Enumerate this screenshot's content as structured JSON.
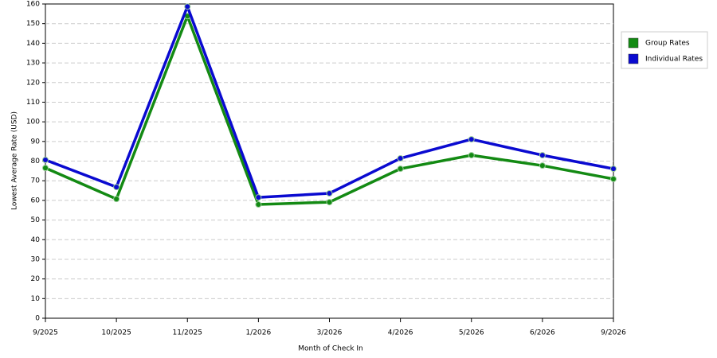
{
  "chart_data": {
    "type": "line",
    "x_label": "Month of Check In",
    "y_label": "Lowest Average Rate (USD)",
    "categories": [
      "9/2025",
      "10/2025",
      "11/2025",
      "1/2026",
      "3/2026",
      "4/2026",
      "5/2026",
      "6/2026",
      "9/2026"
    ],
    "series": [
      {
        "name": "Group Rates",
        "color": "#138a13",
        "values": [
          76.5,
          60.7,
          153.8,
          57.9,
          59.1,
          76.1,
          83,
          77.7,
          70.9
        ]
      },
      {
        "name": "Individual Rates",
        "color": "#0a0ad0",
        "values": [
          80.6,
          66.8,
          158.7,
          61.5,
          63.6,
          81.4,
          91.1,
          83,
          76.1
        ]
      }
    ],
    "ylim": [
      0,
      160
    ],
    "yticks": [
      0,
      10,
      20,
      30,
      40,
      50,
      60,
      70,
      80,
      90,
      100,
      110,
      120,
      130,
      140,
      150,
      160
    ],
    "grid": true,
    "legend": "right"
  }
}
